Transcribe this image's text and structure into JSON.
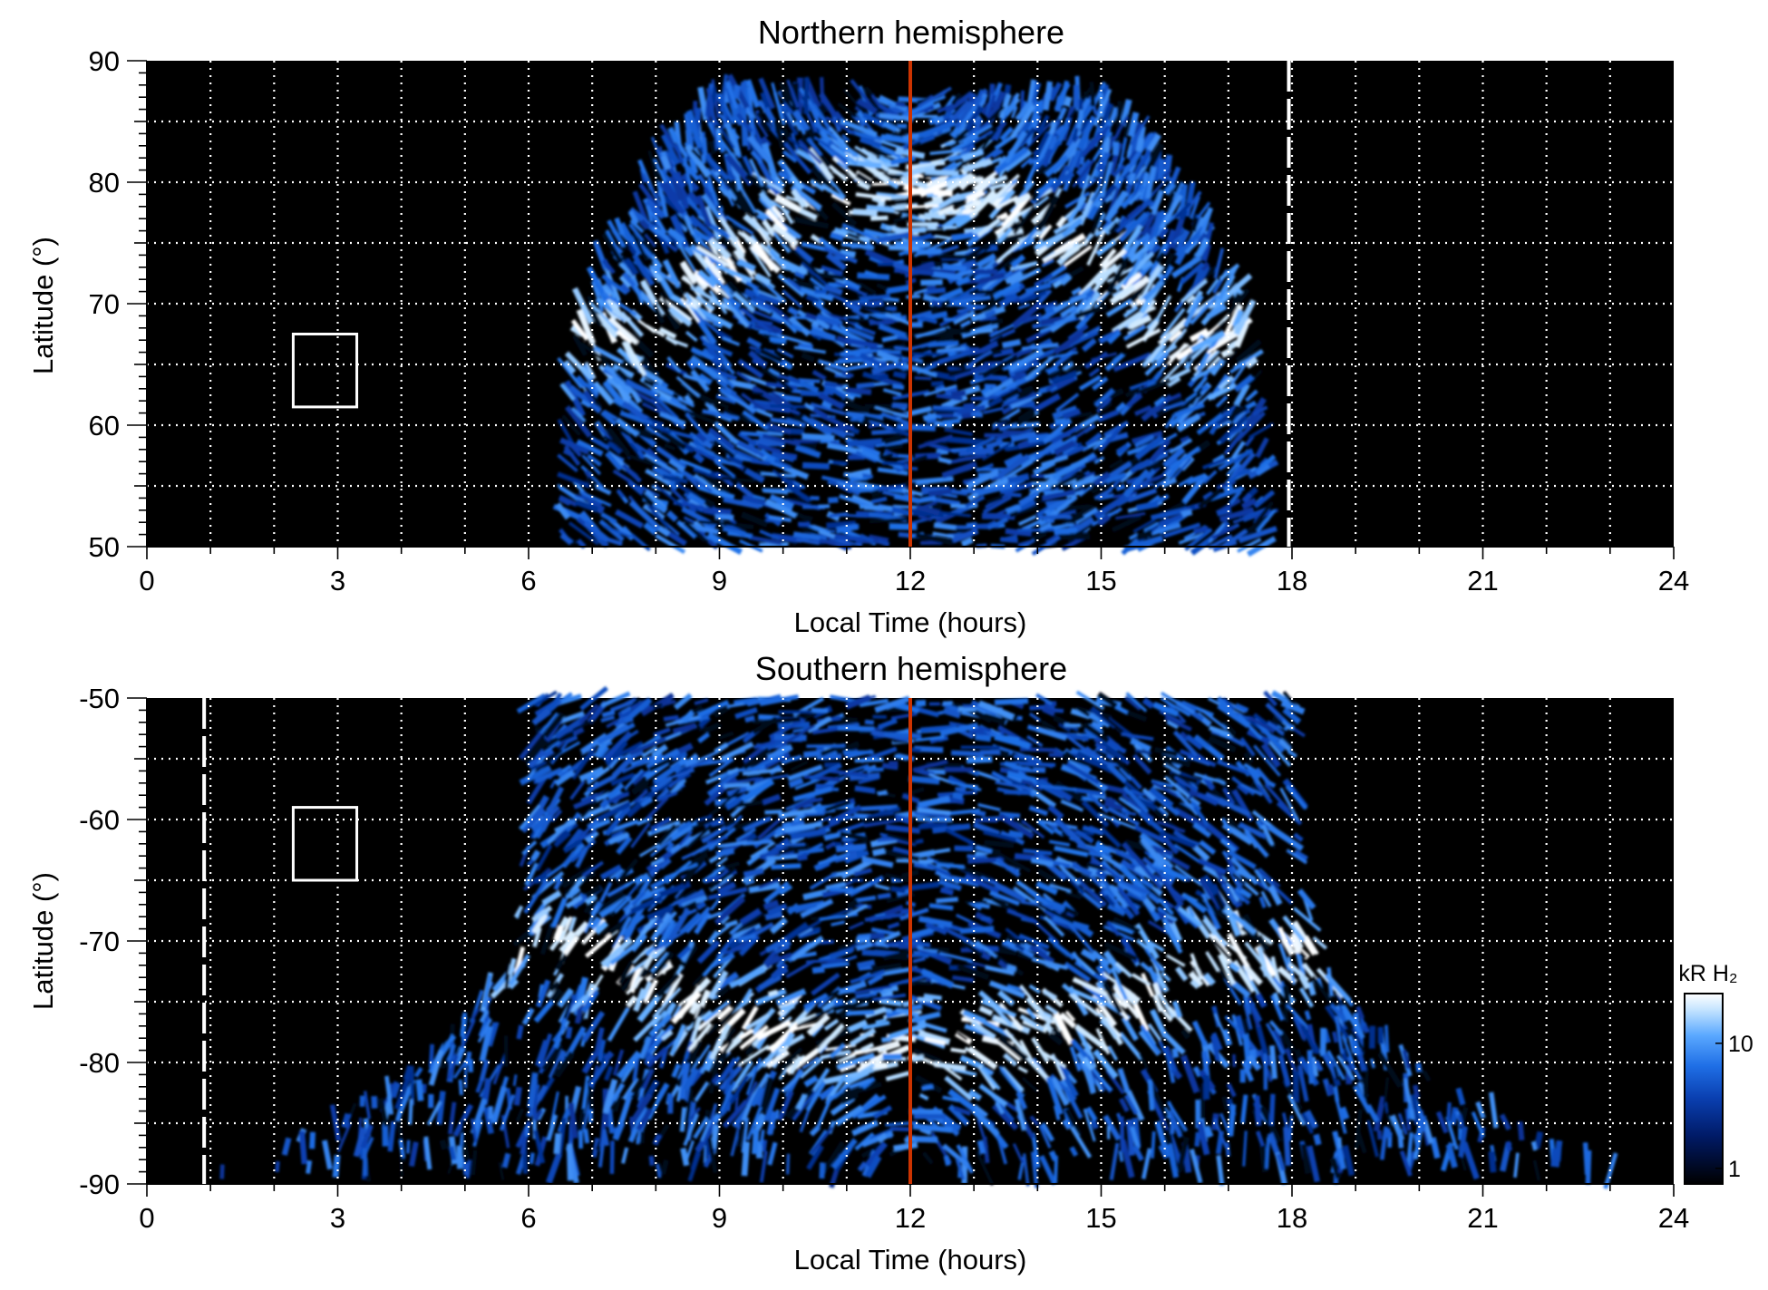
{
  "chart_data": [
    {
      "type": "heatmap",
      "title": "Northern hemisphere",
      "xlabel": "Local Time (hours)",
      "ylabel": "Latitude (°)",
      "xlim": [
        0,
        24
      ],
      "ylim": [
        50,
        90
      ],
      "xticks": [
        "0",
        "3",
        "6",
        "9",
        "12",
        "15",
        "18",
        "21",
        "24"
      ],
      "yticks": [
        "50",
        "60",
        "70",
        "80",
        "90"
      ],
      "grid": true,
      "noon_line_lt": 12,
      "noon_line_color": "#cc3300",
      "terminator_lt": 17.95,
      "reference_box": {
        "lt": [
          2.3,
          3.3
        ],
        "lat": [
          61.5,
          67.5
        ]
      },
      "emission_region": {
        "lt_dawn_at_equatorward": 6.5,
        "lt_dusk_at_equatorward": 17.6,
        "lt_top": [
          8.9,
          15.1
        ],
        "lat_top": 87.5
      },
      "bright_oval": {
        "center_lt": 12,
        "half_width_lt": 4.1,
        "lat_top": 82,
        "lat_bottom": 67.5,
        "peak_lat_noon": 79.5
      }
    },
    {
      "type": "heatmap",
      "title": "Southern hemisphere",
      "xlabel": "Local Time (hours)",
      "ylabel": "Latitude (°)",
      "xlim": [
        0,
        24
      ],
      "ylim": [
        -90,
        -50
      ],
      "xticks": [
        "0",
        "3",
        "6",
        "9",
        "12",
        "15",
        "18",
        "21",
        "24"
      ],
      "yticks": [
        "-50",
        "-60",
        "-70",
        "-80",
        "-90"
      ],
      "grid": true,
      "noon_line_lt": 12,
      "noon_line_color": "#cc3300",
      "terminator_lt": 0.9,
      "reference_box": {
        "lt": [
          2.3,
          3.3
        ],
        "lat": [
          -65.0,
          -59.0
        ]
      },
      "emission_region": {
        "lt_left_top": 6.0,
        "lt_right_top": 18.1,
        "lt_left_bottom": 1.0,
        "lt_right_bottom": 23.5,
        "lat_bottom": -89.0
      },
      "bright_oval": {
        "center_lt": 12,
        "half_width_lt": 5.2,
        "lat_top": -70.5,
        "lat_bottom": -86.5,
        "peak_lat_noon": -79.0
      }
    }
  ],
  "colorbar": {
    "label": "kR H₂",
    "ticks": [
      "10",
      "1"
    ],
    "tick_values": [
      10,
      1
    ],
    "range": [
      0.75,
      25
    ],
    "scale": "log",
    "colors": [
      "#000000",
      "#001a66",
      "#0a3fb0",
      "#1f6fe6",
      "#5aa8ff",
      "#c8e6ff",
      "#ffffff"
    ]
  }
}
